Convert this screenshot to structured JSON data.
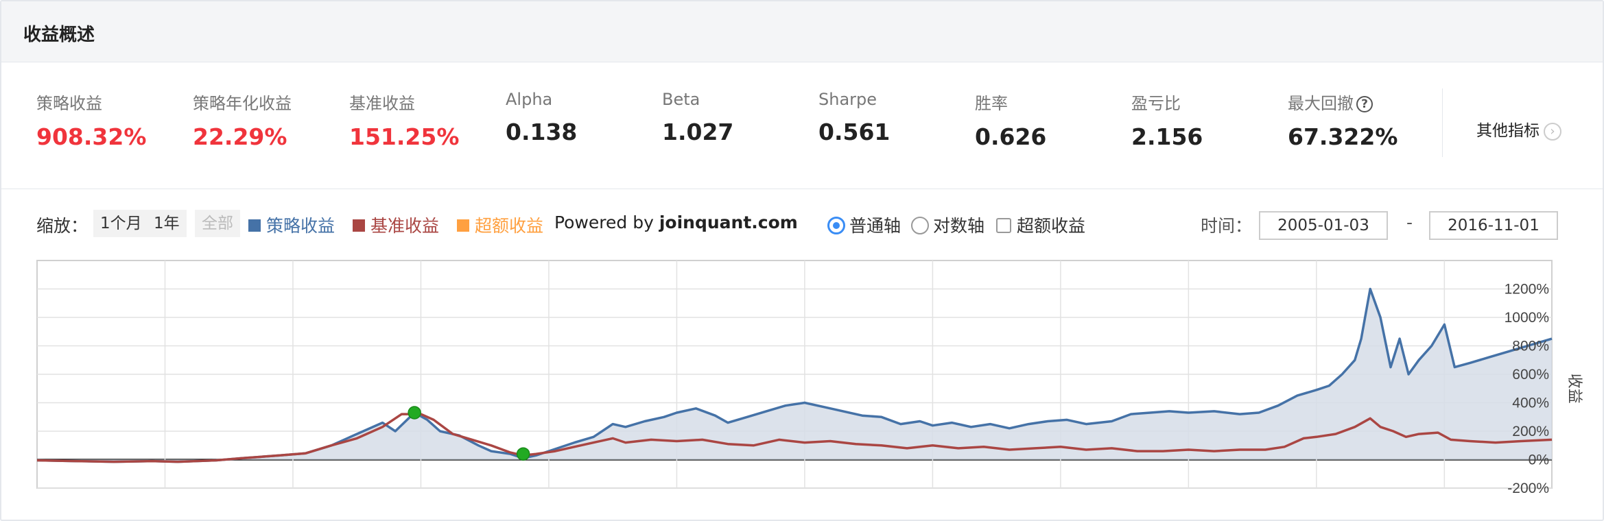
{
  "header": {
    "title": "收益概述"
  },
  "metrics": [
    {
      "label": "策略收益",
      "value": "908.32%",
      "color": "red"
    },
    {
      "label": "策略年化收益",
      "value": "22.29%",
      "color": "red"
    },
    {
      "label": "基准收益",
      "value": "151.25%",
      "color": "red"
    },
    {
      "label": "Alpha",
      "value": "0.138",
      "color": "black"
    },
    {
      "label": "Beta",
      "value": "1.027",
      "color": "black"
    },
    {
      "label": "Sharpe",
      "value": "0.561",
      "color": "black"
    },
    {
      "label": "胜率",
      "value": "0.626",
      "color": "black"
    },
    {
      "label": "盈亏比",
      "value": "2.156",
      "color": "black"
    },
    {
      "label": "最大回撤",
      "value": "67.322%",
      "color": "black",
      "icon": "help-icon"
    }
  ],
  "other_metrics": {
    "label": "其他指标",
    "icon": "chevron-right-icon"
  },
  "toolbar": {
    "zoom_label": "缩放：",
    "zoom_options": [
      "1个月",
      "1年",
      "全部"
    ],
    "legend": [
      {
        "label": "策略收益",
        "color": "#4572a7"
      },
      {
        "label": "基准收益",
        "color": "#aa4643"
      },
      {
        "label": "超额收益",
        "color": "#ffa040"
      }
    ],
    "powered_prefix": "Powered by ",
    "powered_site": "joinquant.com",
    "axis_options": [
      "普通轴",
      "对数轴"
    ],
    "axis_selected": "普通轴",
    "excess_checkbox": "超额收益",
    "time_label": "时间：",
    "date_start": "2005-01-03",
    "date_sep": "-",
    "date_end": "2016-11-01"
  },
  "chart_data": {
    "type": "area",
    "ylabel": "收益",
    "yticks": [
      "1200%",
      "1000%",
      "800%",
      "600%",
      "400%",
      "200%",
      "0%",
      "-200%"
    ],
    "ylim": [
      -200,
      1400
    ],
    "xlim": [
      2005.0,
      2016.84
    ],
    "grid": true,
    "series": [
      {
        "name": "策略收益",
        "color": "#4572a7",
        "fill": "#d6dde8",
        "points": [
          [
            2005.0,
            -5
          ],
          [
            2005.3,
            -10
          ],
          [
            2005.6,
            -15
          ],
          [
            2005.9,
            -10
          ],
          [
            2006.1,
            -15
          ],
          [
            2006.4,
            -5
          ],
          [
            2006.6,
            10
          ],
          [
            2006.9,
            30
          ],
          [
            2007.1,
            45
          ],
          [
            2007.3,
            100
          ],
          [
            2007.5,
            180
          ],
          [
            2007.7,
            260
          ],
          [
            2007.8,
            200
          ],
          [
            2007.95,
            330
          ],
          [
            2008.05,
            280
          ],
          [
            2008.15,
            200
          ],
          [
            2008.3,
            170
          ],
          [
            2008.45,
            100
          ],
          [
            2008.55,
            60
          ],
          [
            2008.7,
            40
          ],
          [
            2008.8,
            10
          ],
          [
            2008.9,
            30
          ],
          [
            2009.0,
            60
          ],
          [
            2009.2,
            120
          ],
          [
            2009.35,
            160
          ],
          [
            2009.5,
            250
          ],
          [
            2009.6,
            230
          ],
          [
            2009.75,
            270
          ],
          [
            2009.9,
            300
          ],
          [
            2010.0,
            330
          ],
          [
            2010.15,
            360
          ],
          [
            2010.3,
            310
          ],
          [
            2010.4,
            260
          ],
          [
            2010.55,
            300
          ],
          [
            2010.7,
            340
          ],
          [
            2010.85,
            380
          ],
          [
            2011.0,
            400
          ],
          [
            2011.15,
            370
          ],
          [
            2011.3,
            340
          ],
          [
            2011.45,
            310
          ],
          [
            2011.6,
            300
          ],
          [
            2011.75,
            250
          ],
          [
            2011.9,
            270
          ],
          [
            2012.0,
            240
          ],
          [
            2012.15,
            260
          ],
          [
            2012.3,
            230
          ],
          [
            2012.45,
            250
          ],
          [
            2012.6,
            220
          ],
          [
            2012.75,
            250
          ],
          [
            2012.9,
            270
          ],
          [
            2013.05,
            280
          ],
          [
            2013.2,
            250
          ],
          [
            2013.4,
            270
          ],
          [
            2013.55,
            320
          ],
          [
            2013.7,
            330
          ],
          [
            2013.85,
            340
          ],
          [
            2014.0,
            330
          ],
          [
            2014.2,
            340
          ],
          [
            2014.4,
            320
          ],
          [
            2014.55,
            330
          ],
          [
            2014.7,
            380
          ],
          [
            2014.85,
            450
          ],
          [
            2015.0,
            490
          ],
          [
            2015.1,
            520
          ],
          [
            2015.2,
            600
          ],
          [
            2015.3,
            700
          ],
          [
            2015.35,
            850
          ],
          [
            2015.42,
            1200
          ],
          [
            2015.5,
            1000
          ],
          [
            2015.58,
            650
          ],
          [
            2015.65,
            850
          ],
          [
            2015.72,
            600
          ],
          [
            2015.8,
            700
          ],
          [
            2015.9,
            800
          ],
          [
            2016.0,
            950
          ],
          [
            2016.08,
            650
          ],
          [
            2016.2,
            680
          ],
          [
            2016.35,
            720
          ],
          [
            2016.5,
            760
          ],
          [
            2016.65,
            800
          ],
          [
            2016.84,
            850
          ]
        ]
      },
      {
        "name": "基准收益",
        "color": "#aa4643",
        "points": [
          [
            2005.0,
            -5
          ],
          [
            2005.3,
            -10
          ],
          [
            2005.6,
            -15
          ],
          [
            2005.9,
            -10
          ],
          [
            2006.1,
            -15
          ],
          [
            2006.4,
            -5
          ],
          [
            2006.6,
            10
          ],
          [
            2006.9,
            30
          ],
          [
            2007.1,
            45
          ],
          [
            2007.3,
            100
          ],
          [
            2007.5,
            150
          ],
          [
            2007.7,
            230
          ],
          [
            2007.85,
            320
          ],
          [
            2008.0,
            320
          ],
          [
            2008.1,
            280
          ],
          [
            2008.25,
            180
          ],
          [
            2008.4,
            140
          ],
          [
            2008.55,
            100
          ],
          [
            2008.7,
            50
          ],
          [
            2008.8,
            30
          ],
          [
            2008.9,
            40
          ],
          [
            2009.05,
            60
          ],
          [
            2009.2,
            90
          ],
          [
            2009.35,
            120
          ],
          [
            2009.5,
            150
          ],
          [
            2009.6,
            120
          ],
          [
            2009.8,
            140
          ],
          [
            2010.0,
            130
          ],
          [
            2010.2,
            140
          ],
          [
            2010.4,
            110
          ],
          [
            2010.6,
            100
          ],
          [
            2010.8,
            140
          ],
          [
            2011.0,
            120
          ],
          [
            2011.2,
            130
          ],
          [
            2011.4,
            110
          ],
          [
            2011.6,
            100
          ],
          [
            2011.8,
            80
          ],
          [
            2012.0,
            100
          ],
          [
            2012.2,
            80
          ],
          [
            2012.4,
            90
          ],
          [
            2012.6,
            70
          ],
          [
            2012.8,
            80
          ],
          [
            2013.0,
            90
          ],
          [
            2013.2,
            70
          ],
          [
            2013.4,
            80
          ],
          [
            2013.6,
            60
          ],
          [
            2013.8,
            60
          ],
          [
            2014.0,
            70
          ],
          [
            2014.2,
            60
          ],
          [
            2014.4,
            70
          ],
          [
            2014.6,
            70
          ],
          [
            2014.75,
            90
          ],
          [
            2014.9,
            150
          ],
          [
            2015.0,
            160
          ],
          [
            2015.15,
            180
          ],
          [
            2015.3,
            230
          ],
          [
            2015.42,
            290
          ],
          [
            2015.5,
            230
          ],
          [
            2015.6,
            200
          ],
          [
            2015.7,
            160
          ],
          [
            2015.8,
            180
          ],
          [
            2015.95,
            190
          ],
          [
            2016.05,
            140
          ],
          [
            2016.2,
            130
          ],
          [
            2016.4,
            120
          ],
          [
            2016.6,
            130
          ],
          [
            2016.84,
            140
          ]
        ]
      }
    ],
    "markers": [
      {
        "x": 2007.95,
        "y": 330,
        "color": "#22aa22"
      },
      {
        "x": 2008.8,
        "y": 40,
        "color": "#22aa22"
      }
    ]
  }
}
